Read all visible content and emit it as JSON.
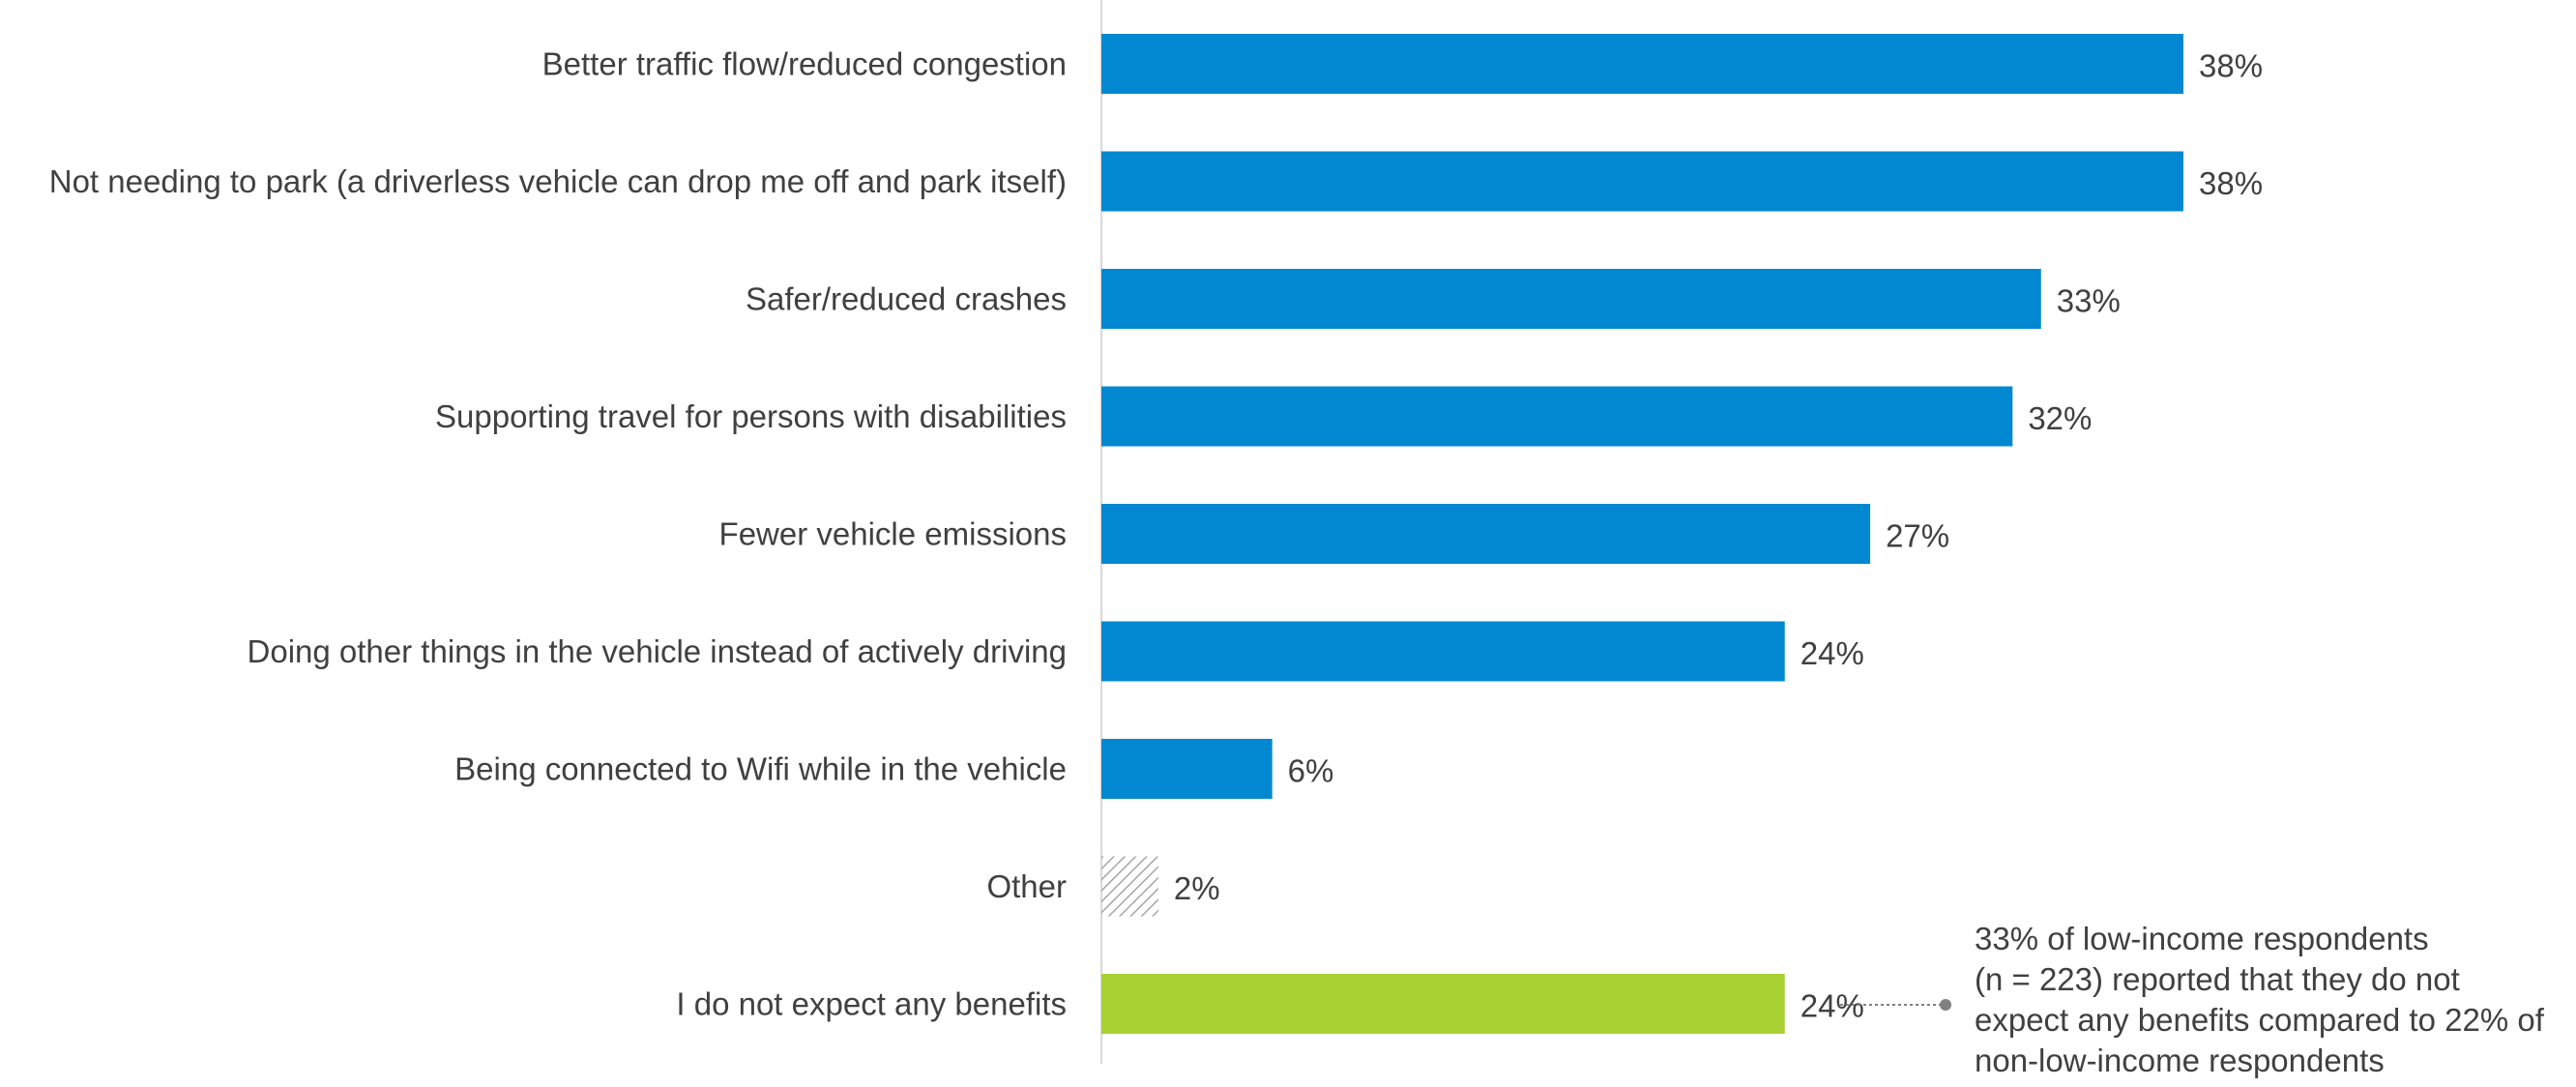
{
  "chart_data": {
    "type": "bar",
    "orientation": "horizontal",
    "categories": [
      "Better traffic flow/reduced congestion",
      "Not needing to park (a driverless vehicle can drop me off and park itself)",
      "Safer/reduced crashes",
      "Supporting travel for persons with disabilities",
      "Fewer vehicle emissions",
      "Doing other things in the vehicle instead of actively driving",
      "Being connected to Wifi while in the vehicle",
      "Other",
      "I do not expect any benefits"
    ],
    "values": [
      38,
      38,
      33,
      32,
      27,
      24,
      6,
      2,
      24
    ],
    "value_labels": [
      "38%",
      "38%",
      "33%",
      "32%",
      "27%",
      "24%",
      "6%",
      "2%",
      "24%"
    ],
    "bar_styles": [
      "solid",
      "solid",
      "solid",
      "solid",
      "solid",
      "solid",
      "solid",
      "hatched",
      "solid"
    ],
    "bar_colors": [
      "#0288d1",
      "#0288d1",
      "#0288d1",
      "#0288d1",
      "#0288d1",
      "#0288d1",
      "#0288d1",
      "#bfbfbf",
      "#a9d134"
    ],
    "xlim": [
      0,
      40
    ],
    "grid": false,
    "title": "",
    "xlabel": "",
    "ylabel": ""
  },
  "annotation": {
    "text": "33% of low-income respondents (n = 223) reported that they do not expect any benefits compared to 22% of non-low-income respondents",
    "lines": [
      "33% of low-income respondents",
      "(n = 223) reported that they do not",
      "expect any benefits compared to 22% of",
      "non-low-income respondents"
    ]
  },
  "colors": {
    "primary_bar": "#0288d1",
    "highlight_bar": "#a9d134",
    "hatch": "#bfbfbf",
    "text": "#404040",
    "axis": "#d9d9d9",
    "connector": "#808080"
  }
}
